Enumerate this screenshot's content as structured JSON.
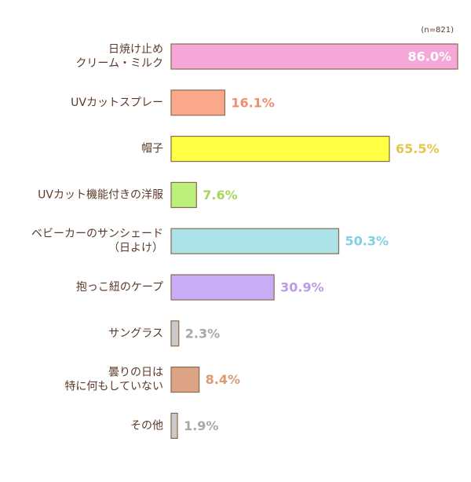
{
  "chart_data": {
    "type": "bar",
    "orientation": "horizontal",
    "annotation": "(n=821)",
    "categories": [
      "日焼け止め\nクリーム・ミルク",
      "UVカットスプレー",
      "帽子",
      "UVカット機能付きの洋服",
      "ベビーカーのサンシェード\n（日よけ）",
      "抱っこ紐のケープ",
      "サングラス",
      "曇りの日は\n特に何もしていない",
      "その他"
    ],
    "values": [
      86.0,
      16.1,
      65.5,
      7.6,
      50.3,
      30.9,
      2.3,
      8.4,
      1.9
    ],
    "value_labels": [
      "86.0%",
      "16.1%",
      "65.5%",
      "7.6%",
      "50.3%",
      "30.9%",
      "2.3%",
      "8.4%",
      "1.9%"
    ],
    "colors": [
      "#f5a8d8",
      "#f9a88c",
      "#ffff44",
      "#bdef7c",
      "#abe3e8",
      "#c8acf5",
      "#cacaca",
      "#dca386",
      "#cacaca"
    ],
    "label_colors": [
      "#ffffff",
      "#f28c6c",
      "#e6c64a",
      "#a5d85a",
      "#7fd0e2",
      "#b99be9",
      "#a8a8a8",
      "#d99a70",
      "#a8a8a8"
    ],
    "xlim": [
      0,
      86
    ]
  }
}
